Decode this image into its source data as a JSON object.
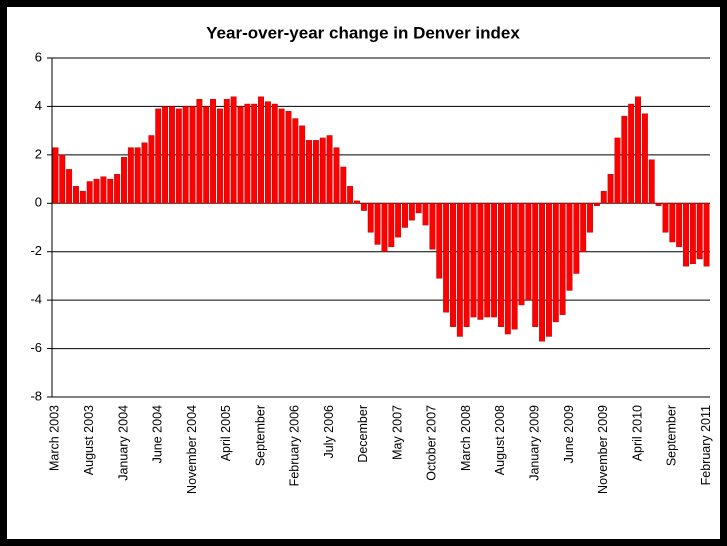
{
  "chart_data": {
    "type": "bar",
    "title": "Year-over-year change in Denver index",
    "categories": [
      "March 2003",
      null,
      null,
      null,
      null,
      "August 2003",
      null,
      null,
      null,
      null,
      "January 2004",
      null,
      null,
      null,
      null,
      "June 2004",
      null,
      null,
      null,
      null,
      "November 2004",
      null,
      null,
      null,
      null,
      "April 2005",
      null,
      null,
      null,
      null,
      "September",
      null,
      null,
      null,
      null,
      "February 2006",
      null,
      null,
      null,
      null,
      "July 2006",
      null,
      null,
      null,
      null,
      "December",
      null,
      null,
      null,
      null,
      "May 2007",
      null,
      null,
      null,
      null,
      "October 2007",
      null,
      null,
      null,
      null,
      "March 2008",
      null,
      null,
      null,
      null,
      "August 2008",
      null,
      null,
      null,
      null,
      "January 2009",
      null,
      null,
      null,
      null,
      "June 2009",
      null,
      null,
      null,
      null,
      "November 2009",
      null,
      null,
      null,
      null,
      "April 2010",
      null,
      null,
      null,
      null,
      "September",
      null,
      null,
      null,
      null,
      "February 2011"
    ],
    "values": [
      2.3,
      2.0,
      1.4,
      0.7,
      0.5,
      0.9,
      1.0,
      1.1,
      1.0,
      1.2,
      1.9,
      2.3,
      2.3,
      2.5,
      2.8,
      3.9,
      4.0,
      4.0,
      3.9,
      4.0,
      4.0,
      4.3,
      4.0,
      4.3,
      3.9,
      4.3,
      4.4,
      4.0,
      4.1,
      4.1,
      4.4,
      4.2,
      4.1,
      3.9,
      3.8,
      3.5,
      3.2,
      2.6,
      2.6,
      2.7,
      2.8,
      2.3,
      1.5,
      0.7,
      0.1,
      -0.3,
      -1.2,
      -1.7,
      -2.0,
      -1.8,
      -1.4,
      -1.0,
      -0.7,
      -0.4,
      -0.9,
      -1.9,
      -3.1,
      -4.5,
      -5.1,
      -5.5,
      -5.1,
      -4.7,
      -4.8,
      -4.7,
      -4.7,
      -5.1,
      -5.4,
      -5.2,
      -4.2,
      -4.0,
      -5.1,
      -5.7,
      -5.5,
      -4.9,
      -4.6,
      -3.6,
      -2.9,
      -2.0,
      -1.2,
      -0.1,
      0.5,
      1.2,
      2.7,
      3.6,
      4.1,
      4.4,
      3.7,
      1.8,
      -0.1,
      -1.2,
      -1.6,
      -1.8,
      -2.6,
      -2.5,
      -2.3,
      -2.6
    ],
    "color": "#ff0000",
    "ylim": [
      -8,
      6
    ],
    "yticks": [
      -8,
      -6,
      -4,
      -2,
      0,
      2,
      4,
      6
    ],
    "grid": true
  }
}
